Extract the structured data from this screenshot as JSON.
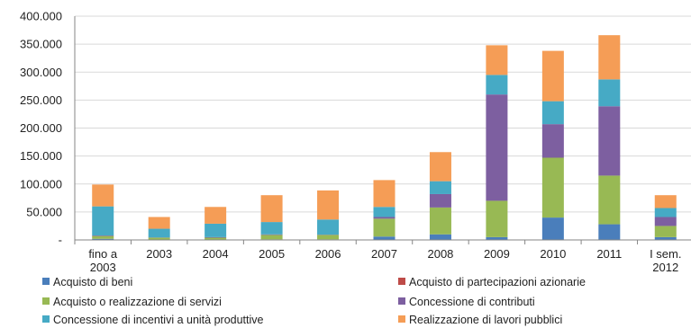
{
  "chart_data": {
    "type": "bar",
    "stacked": true,
    "title": "",
    "xlabel": "",
    "ylabel": "",
    "categories": [
      [
        "fino a",
        "2003"
      ],
      [
        "2003"
      ],
      [
        "2004"
      ],
      [
        "2005"
      ],
      [
        "2006"
      ],
      [
        "2007"
      ],
      [
        "2008"
      ],
      [
        "2009"
      ],
      [
        "2010"
      ],
      [
        "2011"
      ],
      [
        "I sem.",
        "2012"
      ]
    ],
    "ylim": [
      0,
      400000
    ],
    "y_ticks": [
      {
        "value": 0,
        "label": "-"
      },
      {
        "value": 50000,
        "label": "50.000"
      },
      {
        "value": 100000,
        "label": "100.000"
      },
      {
        "value": 150000,
        "label": "150.000"
      },
      {
        "value": 200000,
        "label": "200.000"
      },
      {
        "value": 250000,
        "label": "250.000"
      },
      {
        "value": 300000,
        "label": "300.000"
      },
      {
        "value": 350000,
        "label": "350.000"
      },
      {
        "value": 400000,
        "label": "400.000"
      }
    ],
    "grid": true,
    "legend_position": "bottom",
    "series": [
      {
        "name": "Acquisto di beni",
        "color": "#4a7ebb",
        "values": [
          2000,
          500,
          500,
          1000,
          1000,
          6000,
          10000,
          5000,
          40000,
          28000,
          5000
        ]
      },
      {
        "name": "Acquisto di partecipazioni azionarie",
        "color": "#be4b48",
        "values": [
          0,
          0,
          0,
          0,
          0,
          0,
          0,
          0,
          0,
          0,
          0
        ]
      },
      {
        "name": "Acquisto o realizzazione di servizi",
        "color": "#98b954",
        "values": [
          5000,
          3500,
          3500,
          8000,
          8000,
          32000,
          48000,
          65000,
          107000,
          87000,
          20000
        ]
      },
      {
        "name": "Concessione di contributi",
        "color": "#7d5fa0",
        "values": [
          1000,
          500,
          1000,
          1000,
          500,
          3000,
          24000,
          190000,
          60000,
          124000,
          16000
        ]
      },
      {
        "name": "Concessione di incentivi a unità produttive",
        "color": "#46aac5",
        "values": [
          52000,
          15500,
          24000,
          22000,
          27000,
          18000,
          23000,
          35000,
          41000,
          48000,
          16000
        ]
      },
      {
        "name": "Realizzazione di lavori pubblici",
        "color": "#f59d56",
        "values": [
          39000,
          21000,
          30000,
          48000,
          52000,
          48000,
          52000,
          53000,
          90000,
          79000,
          23000
        ]
      }
    ]
  }
}
